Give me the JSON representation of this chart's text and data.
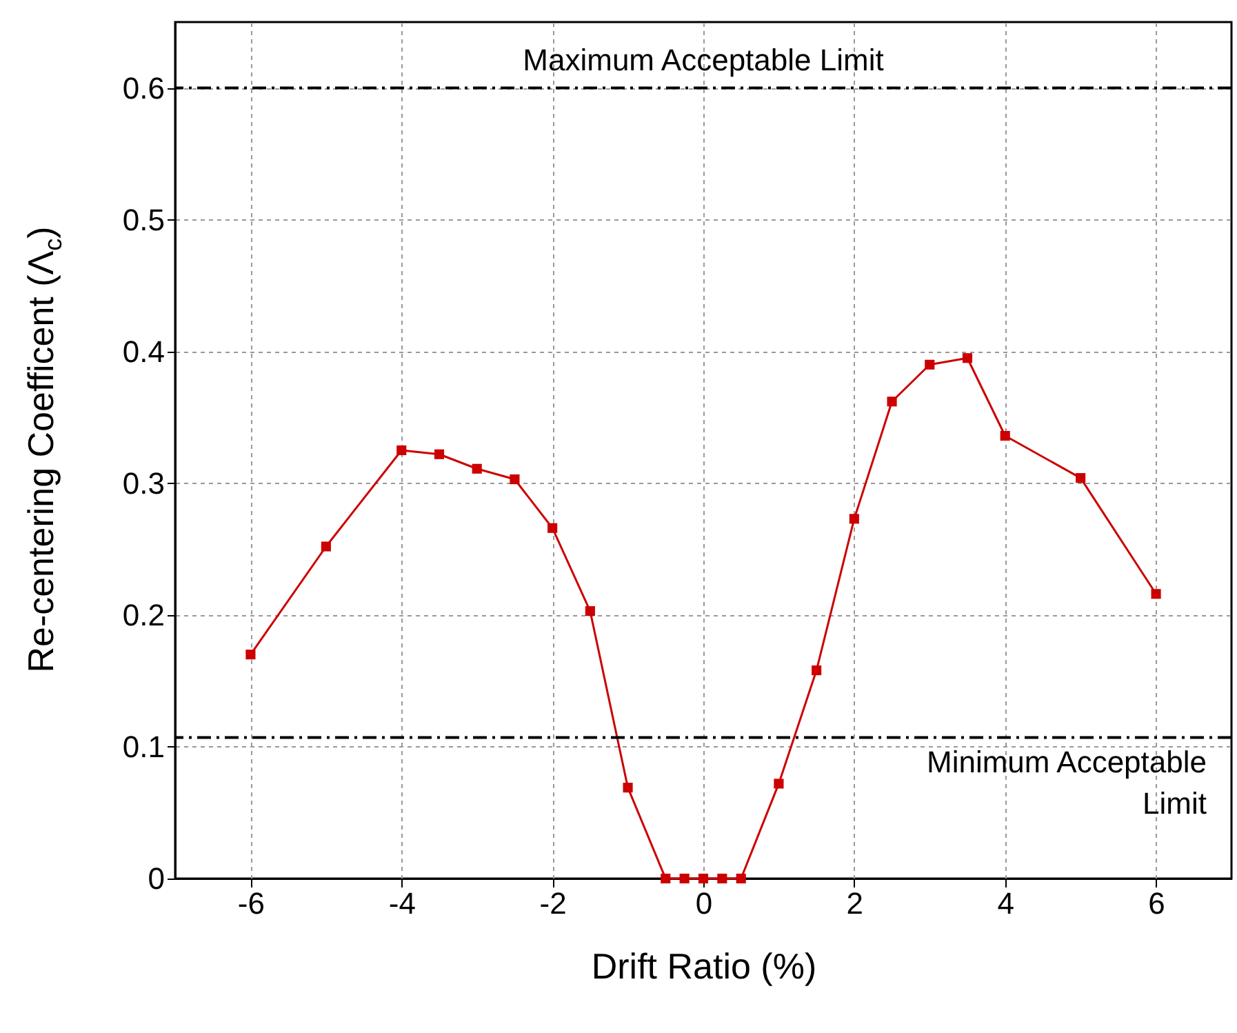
{
  "chart_data": {
    "type": "line",
    "xlabel": "Drift Ratio (%)",
    "ylabel": "Re-centering Coefficent (Λ$_{c}$)",
    "x": [
      -6,
      -5,
      -4,
      -3.5,
      -3,
      -2.5,
      -2,
      -1.5,
      -1,
      -0.5,
      -0.25,
      0,
      0.25,
      0.5,
      1,
      1.5,
      2,
      2.5,
      3,
      3.5,
      4,
      5,
      6
    ],
    "series": [
      {
        "color": "#cc0000",
        "values": [
          0.17,
          0.252,
          0.325,
          0.322,
          0.311,
          0.303,
          0.266,
          0.203,
          0.069,
          0,
          0,
          0,
          0,
          0,
          0.072,
          0.158,
          0.273,
          0.362,
          0.39,
          0.395,
          0.336,
          0.304,
          0.216
        ]
      }
    ],
    "xlim": [
      -7,
      7
    ],
    "xticks": [
      -6,
      -4,
      -2,
      0,
      2,
      4,
      6
    ],
    "ylim": [
      0,
      0.65
    ],
    "yticks": [
      0,
      0.1,
      0.2,
      0.3,
      0.4,
      0.5,
      0.6
    ],
    "grid": true,
    "marker": "square",
    "line_style": "solid",
    "ref_lines": [
      {
        "axis": "y",
        "value": 0.6,
        "label": "Maximum Acceptable Limit",
        "color": "#000000",
        "line_style": "dashdot"
      },
      {
        "axis": "y",
        "value": 0.107,
        "label": "Minimum Acceptable Limit",
        "color": "#000000",
        "line_style": "dashdot"
      }
    ]
  }
}
